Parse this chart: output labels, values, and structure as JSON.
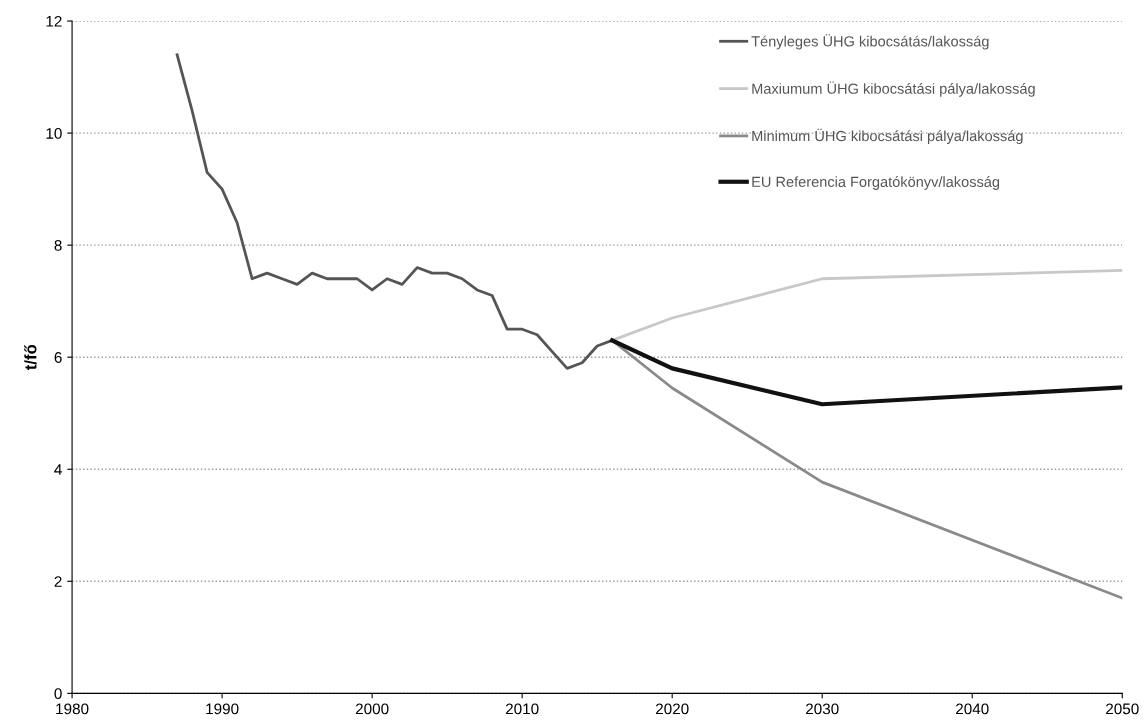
{
  "chart_data": {
    "type": "line",
    "ylabel": "t/fő",
    "xlim": [
      1980,
      2050
    ],
    "xticks": [
      1980,
      1990,
      2000,
      2010,
      2020,
      2030,
      2040,
      2050
    ],
    "ylim": [
      0,
      12
    ],
    "yticks": [
      0,
      2,
      4,
      6,
      8,
      10,
      12
    ],
    "grid": "y",
    "legend": "top right",
    "marker": "none",
    "line_style": "solid",
    "series": [
      {
        "name": "Tényleges ÜHG kibocsátás/lakosság",
        "color": "#555555",
        "x": [
          1987,
          1988,
          1989,
          1990,
          1991,
          1992,
          1993,
          1994,
          1995,
          1996,
          1997,
          1998,
          1999,
          2000,
          2001,
          2002,
          2003,
          2004,
          2005,
          2006,
          2007,
          2008,
          2009,
          2010,
          2011,
          2012,
          2013,
          2014,
          2015,
          2016
        ],
        "values": [
          11.4,
          10.4,
          9.3,
          9.0,
          8.4,
          7.4,
          7.5,
          7.4,
          7.3,
          7.5,
          7.4,
          7.4,
          7.4,
          7.2,
          7.4,
          7.3,
          7.6,
          7.5,
          7.5,
          7.4,
          7.2,
          7.1,
          6.5,
          6.5,
          6.4,
          6.1,
          5.8,
          5.9,
          6.2,
          6.3
        ]
      },
      {
        "name": "Maxiumum ÜHG kibocsátási pálya/lakosság",
        "color": "#c8c8c8",
        "x": [
          2016,
          2020,
          2030,
          2050
        ],
        "values": [
          6.3,
          6.7,
          7.4,
          7.55
        ]
      },
      {
        "name": "Minimum ÜHG kibocsátási pálya/lakosság",
        "color": "#8a8a8a",
        "x": [
          2016,
          2020,
          2030,
          2050
        ],
        "values": [
          6.3,
          5.45,
          3.77,
          1.7
        ]
      },
      {
        "name": "EU Referencia Forgatókönyv/lakosság",
        "color": "#111111",
        "x": [
          2016,
          2020,
          2030,
          2050
        ],
        "values": [
          6.3,
          5.8,
          5.16,
          5.46
        ]
      }
    ]
  }
}
